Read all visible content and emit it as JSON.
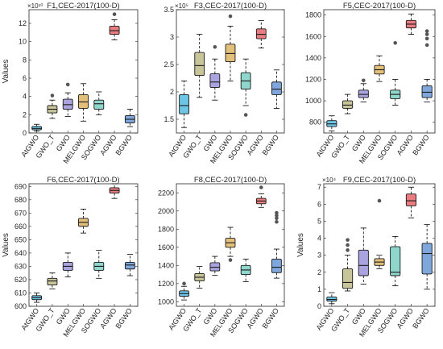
{
  "chart_data": [
    {
      "type": "box",
      "title": "F1,CEC-2017(100-D)",
      "ylabel": "Values",
      "exponent": "×10¹⁰",
      "ylim": [
        0,
        13.5
      ],
      "yticks": [
        0,
        2,
        4,
        6,
        8,
        10,
        12
      ],
      "categories": [
        "AtGWO",
        "GWO_T",
        "GWO",
        "MELGWO",
        "SOGWO",
        "AGWO",
        "BGWO"
      ],
      "colors": [
        "#6ec6e6",
        "#c9c59a",
        "#a9a4e0",
        "#e3c07a",
        "#8fd6cc",
        "#e87c80",
        "#7fa7dc"
      ],
      "boxes": [
        {
          "min": 0.2,
          "q1": 0.35,
          "median": 0.5,
          "q3": 0.72,
          "max": 0.95,
          "outliers": []
        },
        {
          "min": 1.6,
          "q1": 2.2,
          "median": 2.6,
          "q3": 3.0,
          "max": 3.6,
          "outliers": [
            4.1
          ]
        },
        {
          "min": 1.8,
          "q1": 2.6,
          "median": 3.1,
          "q3": 3.7,
          "max": 4.4,
          "outliers": [
            5.3
          ]
        },
        {
          "min": 1.3,
          "q1": 2.7,
          "median": 3.4,
          "q3": 4.2,
          "max": 5.4,
          "outliers": []
        },
        {
          "min": 2.0,
          "q1": 2.6,
          "median": 3.2,
          "q3": 3.6,
          "max": 4.5,
          "outliers": []
        },
        {
          "min": 10.2,
          "q1": 10.8,
          "median": 11.2,
          "q3": 11.7,
          "max": 12.4,
          "outliers": [
            13.0
          ]
        },
        {
          "min": 0.7,
          "q1": 1.1,
          "median": 1.5,
          "q3": 1.9,
          "max": 2.6,
          "outliers": []
        }
      ]
    },
    {
      "type": "box",
      "title": "F3,CEC-2017(100-D)",
      "ylabel": "",
      "exponent": "×10⁵",
      "ylim": [
        1.25,
        3.5
      ],
      "yticks": [
        1.5,
        2,
        2.5,
        3,
        3.5
      ],
      "ytick_labels": [
        "1.5",
        "2",
        "2.5",
        "3",
        "3.5"
      ],
      "categories": [
        "AtGWO",
        "GWO_T",
        "GWO",
        "MELGWO",
        "SOGWO",
        "AGWO",
        "BGWO"
      ],
      "colors": [
        "#6ec6e6",
        "#c9c59a",
        "#a9a4e0",
        "#e3c07a",
        "#8fd6cc",
        "#e87c80",
        "#7fa7dc"
      ],
      "boxes": [
        {
          "min": 1.35,
          "q1": 1.6,
          "median": 1.75,
          "q3": 1.95,
          "max": 2.2,
          "outliers": []
        },
        {
          "min": 1.9,
          "q1": 2.3,
          "median": 2.48,
          "q3": 2.72,
          "max": 3.05,
          "outliers": []
        },
        {
          "min": 1.85,
          "q1": 2.08,
          "median": 2.18,
          "q3": 2.33,
          "max": 2.6,
          "outliers": [
            2.82
          ]
        },
        {
          "min": 2.2,
          "q1": 2.55,
          "median": 2.7,
          "q3": 2.87,
          "max": 3.2,
          "outliers": [
            3.38
          ]
        },
        {
          "min": 1.75,
          "q1": 2.05,
          "median": 2.2,
          "q3": 2.35,
          "max": 2.6,
          "outliers": [
            1.58
          ]
        },
        {
          "min": 2.8,
          "q1": 2.97,
          "median": 3.05,
          "q3": 3.15,
          "max": 3.3,
          "outliers": []
        },
        {
          "min": 1.7,
          "q1": 1.95,
          "median": 2.05,
          "q3": 2.18,
          "max": 2.4,
          "outliers": []
        }
      ]
    },
    {
      "type": "box",
      "title": "F5,CEC-2017(100-D)",
      "ylabel": "",
      "exponent": "",
      "ylim": [
        700,
        1850
      ],
      "yticks": [
        800,
        1000,
        1200,
        1400,
        1600,
        1800
      ],
      "categories": [
        "AtGWO",
        "GWO_T",
        "GWO",
        "MELGWO",
        "SOGWO",
        "AGWO",
        "BGWO"
      ],
      "colors": [
        "#6ec6e6",
        "#c9c59a",
        "#a9a4e0",
        "#e3c07a",
        "#8fd6cc",
        "#e87c80",
        "#7fa7dc"
      ],
      "boxes": [
        {
          "min": 720,
          "q1": 760,
          "median": 785,
          "q3": 815,
          "max": 860,
          "outliers": []
        },
        {
          "min": 880,
          "q1": 930,
          "median": 960,
          "q3": 1000,
          "max": 1060,
          "outliers": []
        },
        {
          "min": 990,
          "q1": 1030,
          "median": 1060,
          "q3": 1100,
          "max": 1160,
          "outliers": [
            1190
          ]
        },
        {
          "min": 1180,
          "q1": 1250,
          "median": 1290,
          "q3": 1330,
          "max": 1420,
          "outliers": []
        },
        {
          "min": 960,
          "q1": 1020,
          "median": 1060,
          "q3": 1100,
          "max": 1200,
          "outliers": [
            1540
          ]
        },
        {
          "min": 1620,
          "q1": 1680,
          "median": 1715,
          "q3": 1750,
          "max": 1810,
          "outliers": []
        },
        {
          "min": 990,
          "q1": 1030,
          "median": 1080,
          "q3": 1140,
          "max": 1200,
          "outliers": [
            1520,
            1580,
            1620,
            1650
          ]
        }
      ]
    },
    {
      "type": "box",
      "title": "F6,CEC-2017(100-D)",
      "ylabel": "Values",
      "exponent": "",
      "ylim": [
        600,
        692
      ],
      "yticks": [
        600,
        610,
        620,
        630,
        640,
        650,
        660,
        670,
        680,
        690
      ],
      "categories": [
        "AtGWO",
        "GWO_T",
        "GWO",
        "MELGWO",
        "SOGWO",
        "AGWO",
        "BGWO"
      ],
      "colors": [
        "#6ec6e6",
        "#c9c59a",
        "#a9a4e0",
        "#e3c07a",
        "#8fd6cc",
        "#e87c80",
        "#7fa7dc"
      ],
      "boxes": [
        {
          "min": 603,
          "q1": 605,
          "median": 606.5,
          "q3": 608,
          "max": 610,
          "outliers": []
        },
        {
          "min": 613,
          "q1": 616,
          "median": 619,
          "q3": 621,
          "max": 625,
          "outliers": []
        },
        {
          "min": 622,
          "q1": 627,
          "median": 630,
          "q3": 633,
          "max": 640,
          "outliers": []
        },
        {
          "min": 655,
          "q1": 660,
          "median": 663,
          "q3": 666,
          "max": 673,
          "outliers": []
        },
        {
          "min": 621,
          "q1": 627,
          "median": 630,
          "q3": 633,
          "max": 642,
          "outliers": []
        },
        {
          "min": 681,
          "q1": 685,
          "median": 687,
          "q3": 689,
          "max": 692,
          "outliers": []
        },
        {
          "min": 623,
          "q1": 628,
          "median": 631,
          "q3": 633,
          "max": 639,
          "outliers": []
        }
      ]
    },
    {
      "type": "box",
      "title": "F8,CEC-2017(100-D)",
      "ylabel": "",
      "exponent": "",
      "ylim": [
        950,
        2300
      ],
      "yticks": [
        1000,
        1200,
        1400,
        1600,
        1800,
        2000,
        2200
      ],
      "categories": [
        "AtGWO",
        "GWO_T",
        "GWO",
        "MELGWO",
        "SOGWO",
        "AGWO",
        "BGWO"
      ],
      "colors": [
        "#6ec6e6",
        "#c9c59a",
        "#a9a4e0",
        "#e3c07a",
        "#8fd6cc",
        "#e87c80",
        "#7fa7dc"
      ],
      "boxes": [
        {
          "min": 1020,
          "q1": 1060,
          "median": 1090,
          "q3": 1120,
          "max": 1170,
          "outliers": [
            1200
          ]
        },
        {
          "min": 1150,
          "q1": 1230,
          "median": 1270,
          "q3": 1310,
          "max": 1390,
          "outliers": []
        },
        {
          "min": 1290,
          "q1": 1340,
          "median": 1380,
          "q3": 1430,
          "max": 1500,
          "outliers": []
        },
        {
          "min": 1500,
          "q1": 1600,
          "median": 1650,
          "q3": 1700,
          "max": 1820,
          "outliers": [
            1460
          ]
        },
        {
          "min": 1220,
          "q1": 1300,
          "median": 1350,
          "q3": 1400,
          "max": 1470,
          "outliers": []
        },
        {
          "min": 2040,
          "q1": 2080,
          "median": 2110,
          "q3": 2140,
          "max": 2190,
          "outliers": [
            2260
          ]
        },
        {
          "min": 1260,
          "q1": 1320,
          "median": 1380,
          "q3": 1470,
          "max": 1580,
          "outliers": [
            1880,
            1920,
            1950,
            1980
          ]
        }
      ]
    },
    {
      "type": "box",
      "title": "F9,CEC-2017(100-D)",
      "ylabel": "Values",
      "exponent": "×10⁴",
      "ylim": [
        0,
        7.2
      ],
      "yticks": [
        0,
        1,
        2,
        3,
        4,
        5,
        6,
        7
      ],
      "categories": [
        "AtGWO",
        "GWO_T",
        "GWO",
        "MELGWO",
        "SOGWO",
        "AGWO",
        "BGWO"
      ],
      "colors": [
        "#6ec6e6",
        "#c9c59a",
        "#a9a4e0",
        "#e3c07a",
        "#8fd6cc",
        "#e87c80",
        "#7fa7dc"
      ],
      "boxes": [
        {
          "min": 0.15,
          "q1": 0.3,
          "median": 0.4,
          "q3": 0.55,
          "max": 0.8,
          "outliers": []
        },
        {
          "min": 0.9,
          "q1": 1.05,
          "median": 1.4,
          "q3": 2.2,
          "max": 3.0,
          "outliers": [
            3.3,
            3.6,
            3.9
          ]
        },
        {
          "min": 1.3,
          "q1": 1.8,
          "median": 2.4,
          "q3": 3.3,
          "max": 4.6,
          "outliers": []
        },
        {
          "min": 2.2,
          "q1": 2.4,
          "median": 2.6,
          "q3": 2.8,
          "max": 3.0,
          "outliers": [
            6.2
          ]
        },
        {
          "min": 1.2,
          "q1": 1.8,
          "median": 2.0,
          "q3": 3.5,
          "max": 4.1,
          "outliers": []
        },
        {
          "min": 5.2,
          "q1": 5.9,
          "median": 6.2,
          "q3": 6.6,
          "max": 7.0,
          "outliers": []
        },
        {
          "min": 1.0,
          "q1": 1.9,
          "median": 3.1,
          "q3": 3.7,
          "max": 4.8,
          "outliers": []
        }
      ]
    }
  ]
}
